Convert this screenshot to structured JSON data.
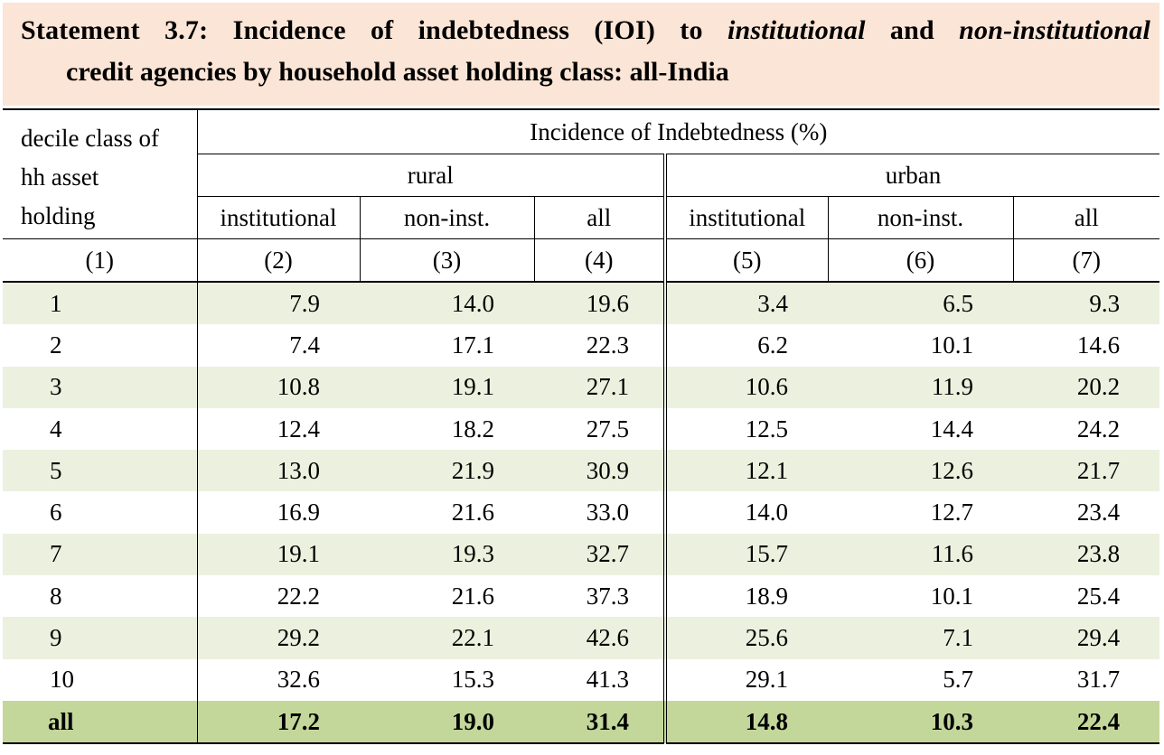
{
  "title": {
    "prefix": "Statement 3.7: Incidence of indebtedness (IOI) to ",
    "italic1": "institutional",
    "middle": " and ",
    "italic2": "non-institutional",
    "line2": "credit agencies by household asset holding class: all-India"
  },
  "header": {
    "first_col": [
      "decile class of",
      "hh asset",
      "holding"
    ],
    "main": "Incidence of Indebtedness (%)",
    "groups": [
      "rural",
      "urban"
    ],
    "subcols": [
      "institutional",
      "non-inst.",
      "all",
      "institutional",
      "non-inst.",
      "all"
    ],
    "col_numbers": [
      "(1)",
      "(2)",
      "(3)",
      "(4)",
      "(5)",
      "(6)",
      "(7)"
    ]
  },
  "rows": [
    {
      "label": "1",
      "values": [
        "7.9",
        "14.0",
        "19.6",
        "3.4",
        "6.5",
        "9.3"
      ]
    },
    {
      "label": "2",
      "values": [
        "7.4",
        "17.1",
        "22.3",
        "6.2",
        "10.1",
        "14.6"
      ]
    },
    {
      "label": "3",
      "values": [
        "10.8",
        "19.1",
        "27.1",
        "10.6",
        "11.9",
        "20.2"
      ]
    },
    {
      "label": "4",
      "values": [
        "12.4",
        "18.2",
        "27.5",
        "12.5",
        "14.4",
        "24.2"
      ]
    },
    {
      "label": "5",
      "values": [
        "13.0",
        "21.9",
        "30.9",
        "12.1",
        "12.6",
        "21.7"
      ]
    },
    {
      "label": "6",
      "values": [
        "16.9",
        "21.6",
        "33.0",
        "14.0",
        "12.7",
        "23.4"
      ]
    },
    {
      "label": "7",
      "values": [
        "19.1",
        "19.3",
        "32.7",
        "15.7",
        "11.6",
        "23.8"
      ]
    },
    {
      "label": "8",
      "values": [
        "22.2",
        "21.6",
        "37.3",
        "18.9",
        "10.1",
        "25.4"
      ]
    },
    {
      "label": "9",
      "values": [
        "29.2",
        "22.1",
        "42.6",
        "25.6",
        "7.1",
        "29.4"
      ]
    },
    {
      "label": "10",
      "values": [
        "32.6",
        "15.3",
        "41.3",
        "29.1",
        "5.7",
        "31.7"
      ]
    }
  ],
  "total": {
    "label": "all",
    "values": [
      "17.2",
      "19.0",
      "31.4",
      "14.8",
      "10.3",
      "22.4"
    ]
  },
  "colors": {
    "title_bg": "#fbe5d6",
    "row_shade": "#ebf1de",
    "total_bg": "#c4d79b"
  }
}
